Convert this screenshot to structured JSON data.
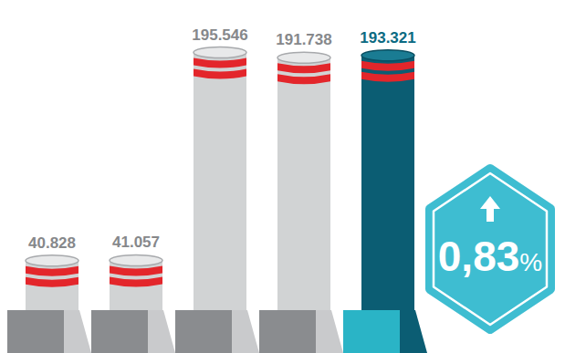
{
  "chart_data": {
    "type": "bar",
    "categories": [
      null,
      null,
      null,
      null,
      null
    ],
    "values": [
      40828,
      41057,
      195546,
      191738,
      193321
    ],
    "value_labels": [
      "40.828",
      "41.057",
      "195.546",
      "191.738",
      "193.321"
    ],
    "colors": [
      "#d1d3d4",
      "#d1d3d4",
      "#d1d3d4",
      "#d1d3d4",
      "#0b5d73"
    ],
    "ylim": [
      0,
      200000
    ],
    "data_labels": true,
    "tick_labels": false,
    "grid": false,
    "annotation": "0,83%"
  }
}
